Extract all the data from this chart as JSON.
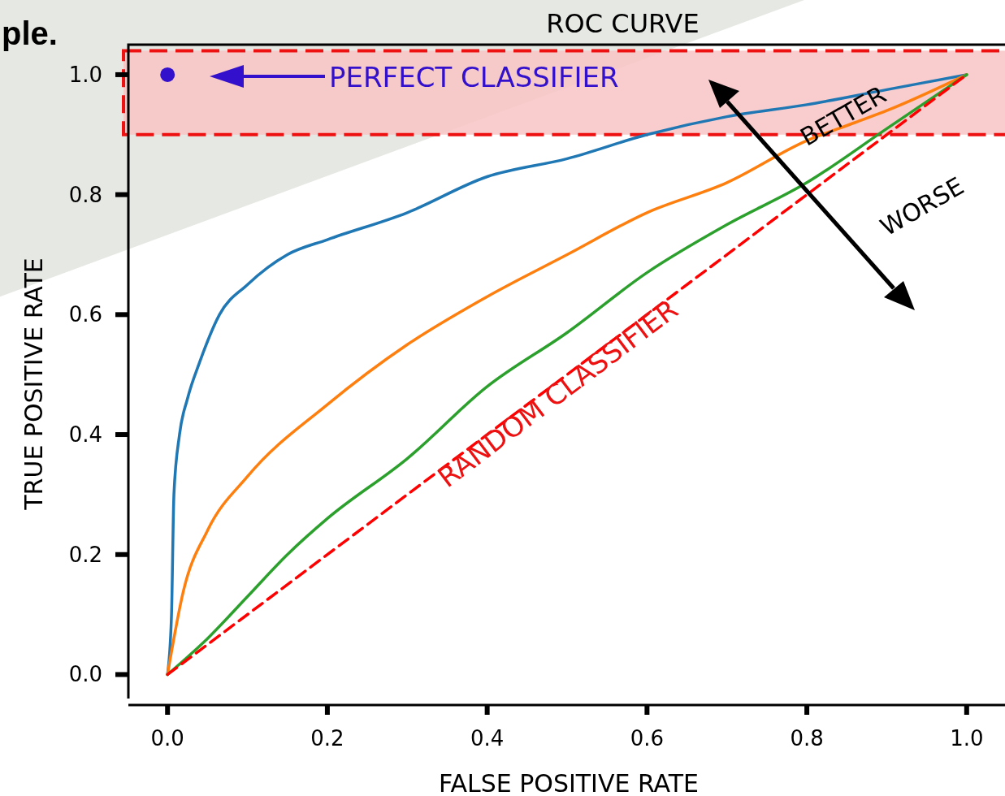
{
  "chart_data": {
    "type": "line",
    "title": "ROC CURVE",
    "xlabel": "FALSE POSITIVE RATE",
    "ylabel": "TRUE POSITIVE RATE",
    "xlim": [
      -0.049,
      1.05
    ],
    "ylim": [
      -0.04,
      1.05
    ],
    "xticks": [
      {
        "value": 0,
        "label": "0.0"
      },
      0.2,
      0.4,
      0.6,
      0.8,
      {
        "value": 1,
        "label": "1.0"
      }
    ],
    "yticks": [
      {
        "value": 0,
        "label": "0.0"
      },
      0.2,
      0.4,
      0.6,
      0.8,
      {
        "value": 1,
        "label": "1.0"
      }
    ],
    "grid": false,
    "marker": "none",
    "line_style": "solid",
    "bands": [
      {
        "axis": "y",
        "from": 0.9,
        "to": 1.04,
        "color": "#f8c4c4"
      }
    ],
    "series": [
      {
        "color": "#1f77b4",
        "x": [
          0,
          0.005,
          0.008,
          0.015,
          0.025,
          0.04,
          0.065,
          0.1,
          0.15,
          0.2,
          0.3,
          0.4,
          0.5,
          0.6,
          0.7,
          0.8,
          0.9,
          1
        ],
        "values": [
          0,
          0.1,
          0.3,
          0.4,
          0.46,
          0.52,
          0.6,
          0.65,
          0.7,
          0.725,
          0.77,
          0.83,
          0.86,
          0.9,
          0.93,
          0.95,
          0.975,
          1
        ]
      },
      {
        "color": "#ff7f0e",
        "x": [
          0,
          0.02,
          0.05,
          0.1,
          0.2,
          0.3,
          0.4,
          0.5,
          0.6,
          0.7,
          0.8,
          0.86,
          0.9,
          1
        ],
        "values": [
          0,
          0.14,
          0.24,
          0.33,
          0.45,
          0.55,
          0.63,
          0.7,
          0.77,
          0.82,
          0.89,
          0.92,
          0.94,
          1
        ]
      },
      {
        "color": "#2ca02c",
        "x": [
          0,
          0.05,
          0.1,
          0.15,
          0.2,
          0.3,
          0.4,
          0.5,
          0.6,
          0.7,
          0.8,
          0.9,
          1
        ],
        "values": [
          0,
          0.06,
          0.13,
          0.2,
          0.26,
          0.36,
          0.48,
          0.57,
          0.67,
          0.75,
          0.82,
          0.91,
          1
        ]
      },
      {
        "color": "#ff0000",
        "line_style": "dashed",
        "x": [
          0,
          1
        ],
        "values": [
          0,
          1
        ]
      },
      {
        "type": "scatter",
        "marker": "circle",
        "color": "#3311cc",
        "x": [
          0
        ],
        "values": [
          1
        ]
      }
    ],
    "annotations": [
      "PERFECT CLASSIFIER",
      "RANDOM CLASSIFIER",
      "BETTER",
      "WORSE",
      "ple."
    ]
  }
}
